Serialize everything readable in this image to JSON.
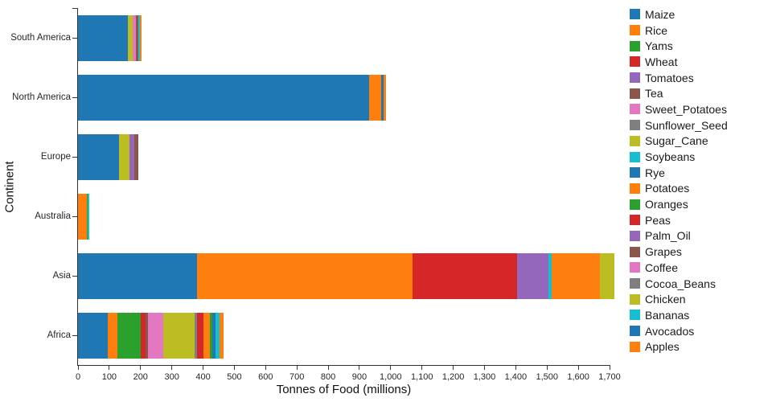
{
  "chart_data": {
    "type": "bar",
    "orientation": "horizontal",
    "stacked": true,
    "title": "",
    "xlabel": "Tonnes of Food (millions)",
    "ylabel": "Continent",
    "xlim": [
      0,
      1738
    ],
    "grid": false,
    "legend_position": "right",
    "categories": [
      "South America",
      "North America",
      "Europe",
      "Australia",
      "Asia",
      "Africa"
    ],
    "x_ticks": [
      {
        "value": 0,
        "label": "0"
      },
      {
        "value": 100,
        "label": "100"
      },
      {
        "value": 200,
        "label": "200"
      },
      {
        "value": 300,
        "label": "300"
      },
      {
        "value": 400,
        "label": "400"
      },
      {
        "value": 500,
        "label": "500"
      },
      {
        "value": 600,
        "label": "600"
      },
      {
        "value": 700,
        "label": "700"
      },
      {
        "value": 800,
        "label": "800"
      },
      {
        "value": 900,
        "label": "900"
      },
      {
        "value": 1000,
        "label": "1,000"
      },
      {
        "value": 1100,
        "label": "1,100"
      },
      {
        "value": 1200,
        "label": "1,200"
      },
      {
        "value": 1300,
        "label": "1,300"
      },
      {
        "value": 1400,
        "label": "1,400"
      },
      {
        "value": 1500,
        "label": "1,500"
      },
      {
        "value": 1600,
        "label": "1,600"
      },
      {
        "value": 1700,
        "label": "1,700"
      }
    ],
    "legend": [
      {
        "label": "Maize",
        "color": "#1f77b4"
      },
      {
        "label": "Rice",
        "color": "#ff7f0e"
      },
      {
        "label": "Yams",
        "color": "#2ca02c"
      },
      {
        "label": "Wheat",
        "color": "#d62728"
      },
      {
        "label": "Tomatoes",
        "color": "#9467bd"
      },
      {
        "label": "Tea",
        "color": "#8c564b"
      },
      {
        "label": "Sweet_Potatoes",
        "color": "#e377c2"
      },
      {
        "label": "Sunflower_Seed",
        "color": "#7f7f7f"
      },
      {
        "label": "Sugar_Cane",
        "color": "#bcbd22"
      },
      {
        "label": "Soybeans",
        "color": "#17becf"
      },
      {
        "label": "Rye",
        "color": "#1f77b4"
      },
      {
        "label": "Potatoes",
        "color": "#ff7f0e"
      },
      {
        "label": "Oranges",
        "color": "#2ca02c"
      },
      {
        "label": "Peas",
        "color": "#d62728"
      },
      {
        "label": "Palm_Oil",
        "color": "#9467bd"
      },
      {
        "label": "Grapes",
        "color": "#8c564b"
      },
      {
        "label": "Coffee",
        "color": "#e377c2"
      },
      {
        "label": "Cocoa_Beans",
        "color": "#7f7f7f"
      },
      {
        "label": "Chicken",
        "color": "#bcbd22"
      },
      {
        "label": "Bananas",
        "color": "#17becf"
      },
      {
        "label": "Avocados",
        "color": "#1f77b4"
      },
      {
        "label": "Apples",
        "color": "#ff7f0e"
      }
    ],
    "bars": {
      "South America": [
        {
          "food": "Maize",
          "value": 160
        },
        {
          "food": "Sugar_Cane",
          "value": 15
        },
        {
          "food": "Coffee",
          "value": 10
        },
        {
          "food": "Grapes",
          "value": 8
        },
        {
          "food": "Bananas",
          "value": 5
        },
        {
          "food": "Apples",
          "value": 5
        }
      ],
      "North America": [
        {
          "food": "Maize",
          "value": 930
        },
        {
          "food": "Potatoes",
          "value": 40
        },
        {
          "food": "Avocados",
          "value": 8
        },
        {
          "food": "Apples",
          "value": 7
        }
      ],
      "Europe": [
        {
          "food": "Maize",
          "value": 130
        },
        {
          "food": "Sugar_Cane",
          "value": 35
        },
        {
          "food": "Tomatoes",
          "value": 15
        },
        {
          "food": "Grapes",
          "value": 12
        }
      ],
      "Australia": [
        {
          "food": "Potatoes",
          "value": 28
        },
        {
          "food": "Oranges",
          "value": 4
        },
        {
          "food": "Bananas",
          "value": 5
        }
      ],
      "Asia": [
        {
          "food": "Maize",
          "value": 380
        },
        {
          "food": "Rice",
          "value": 690
        },
        {
          "food": "Wheat",
          "value": 335
        },
        {
          "food": "Tomatoes",
          "value": 60
        },
        {
          "food": "Palm_Oil",
          "value": 40
        },
        {
          "food": "Soybeans",
          "value": 10
        },
        {
          "food": "Potatoes",
          "value": 155
        },
        {
          "food": "Chicken",
          "value": 45
        }
      ],
      "Africa": [
        {
          "food": "Maize",
          "value": 95
        },
        {
          "food": "Rice",
          "value": 30
        },
        {
          "food": "Yams",
          "value": 75
        },
        {
          "food": "Peas",
          "value": 15
        },
        {
          "food": "Tea",
          "value": 8
        },
        {
          "food": "Sweet_Potatoes",
          "value": 50
        },
        {
          "food": "Sugar_Cane",
          "value": 100
        },
        {
          "food": "Sunflower_Seed",
          "value": 8
        },
        {
          "food": "Wheat",
          "value": 20
        },
        {
          "food": "Potatoes",
          "value": 20
        },
        {
          "food": "Oranges",
          "value": 8
        },
        {
          "food": "Avocados",
          "value": 10
        },
        {
          "food": "Bananas",
          "value": 15
        },
        {
          "food": "Apples",
          "value": 12
        }
      ]
    }
  }
}
